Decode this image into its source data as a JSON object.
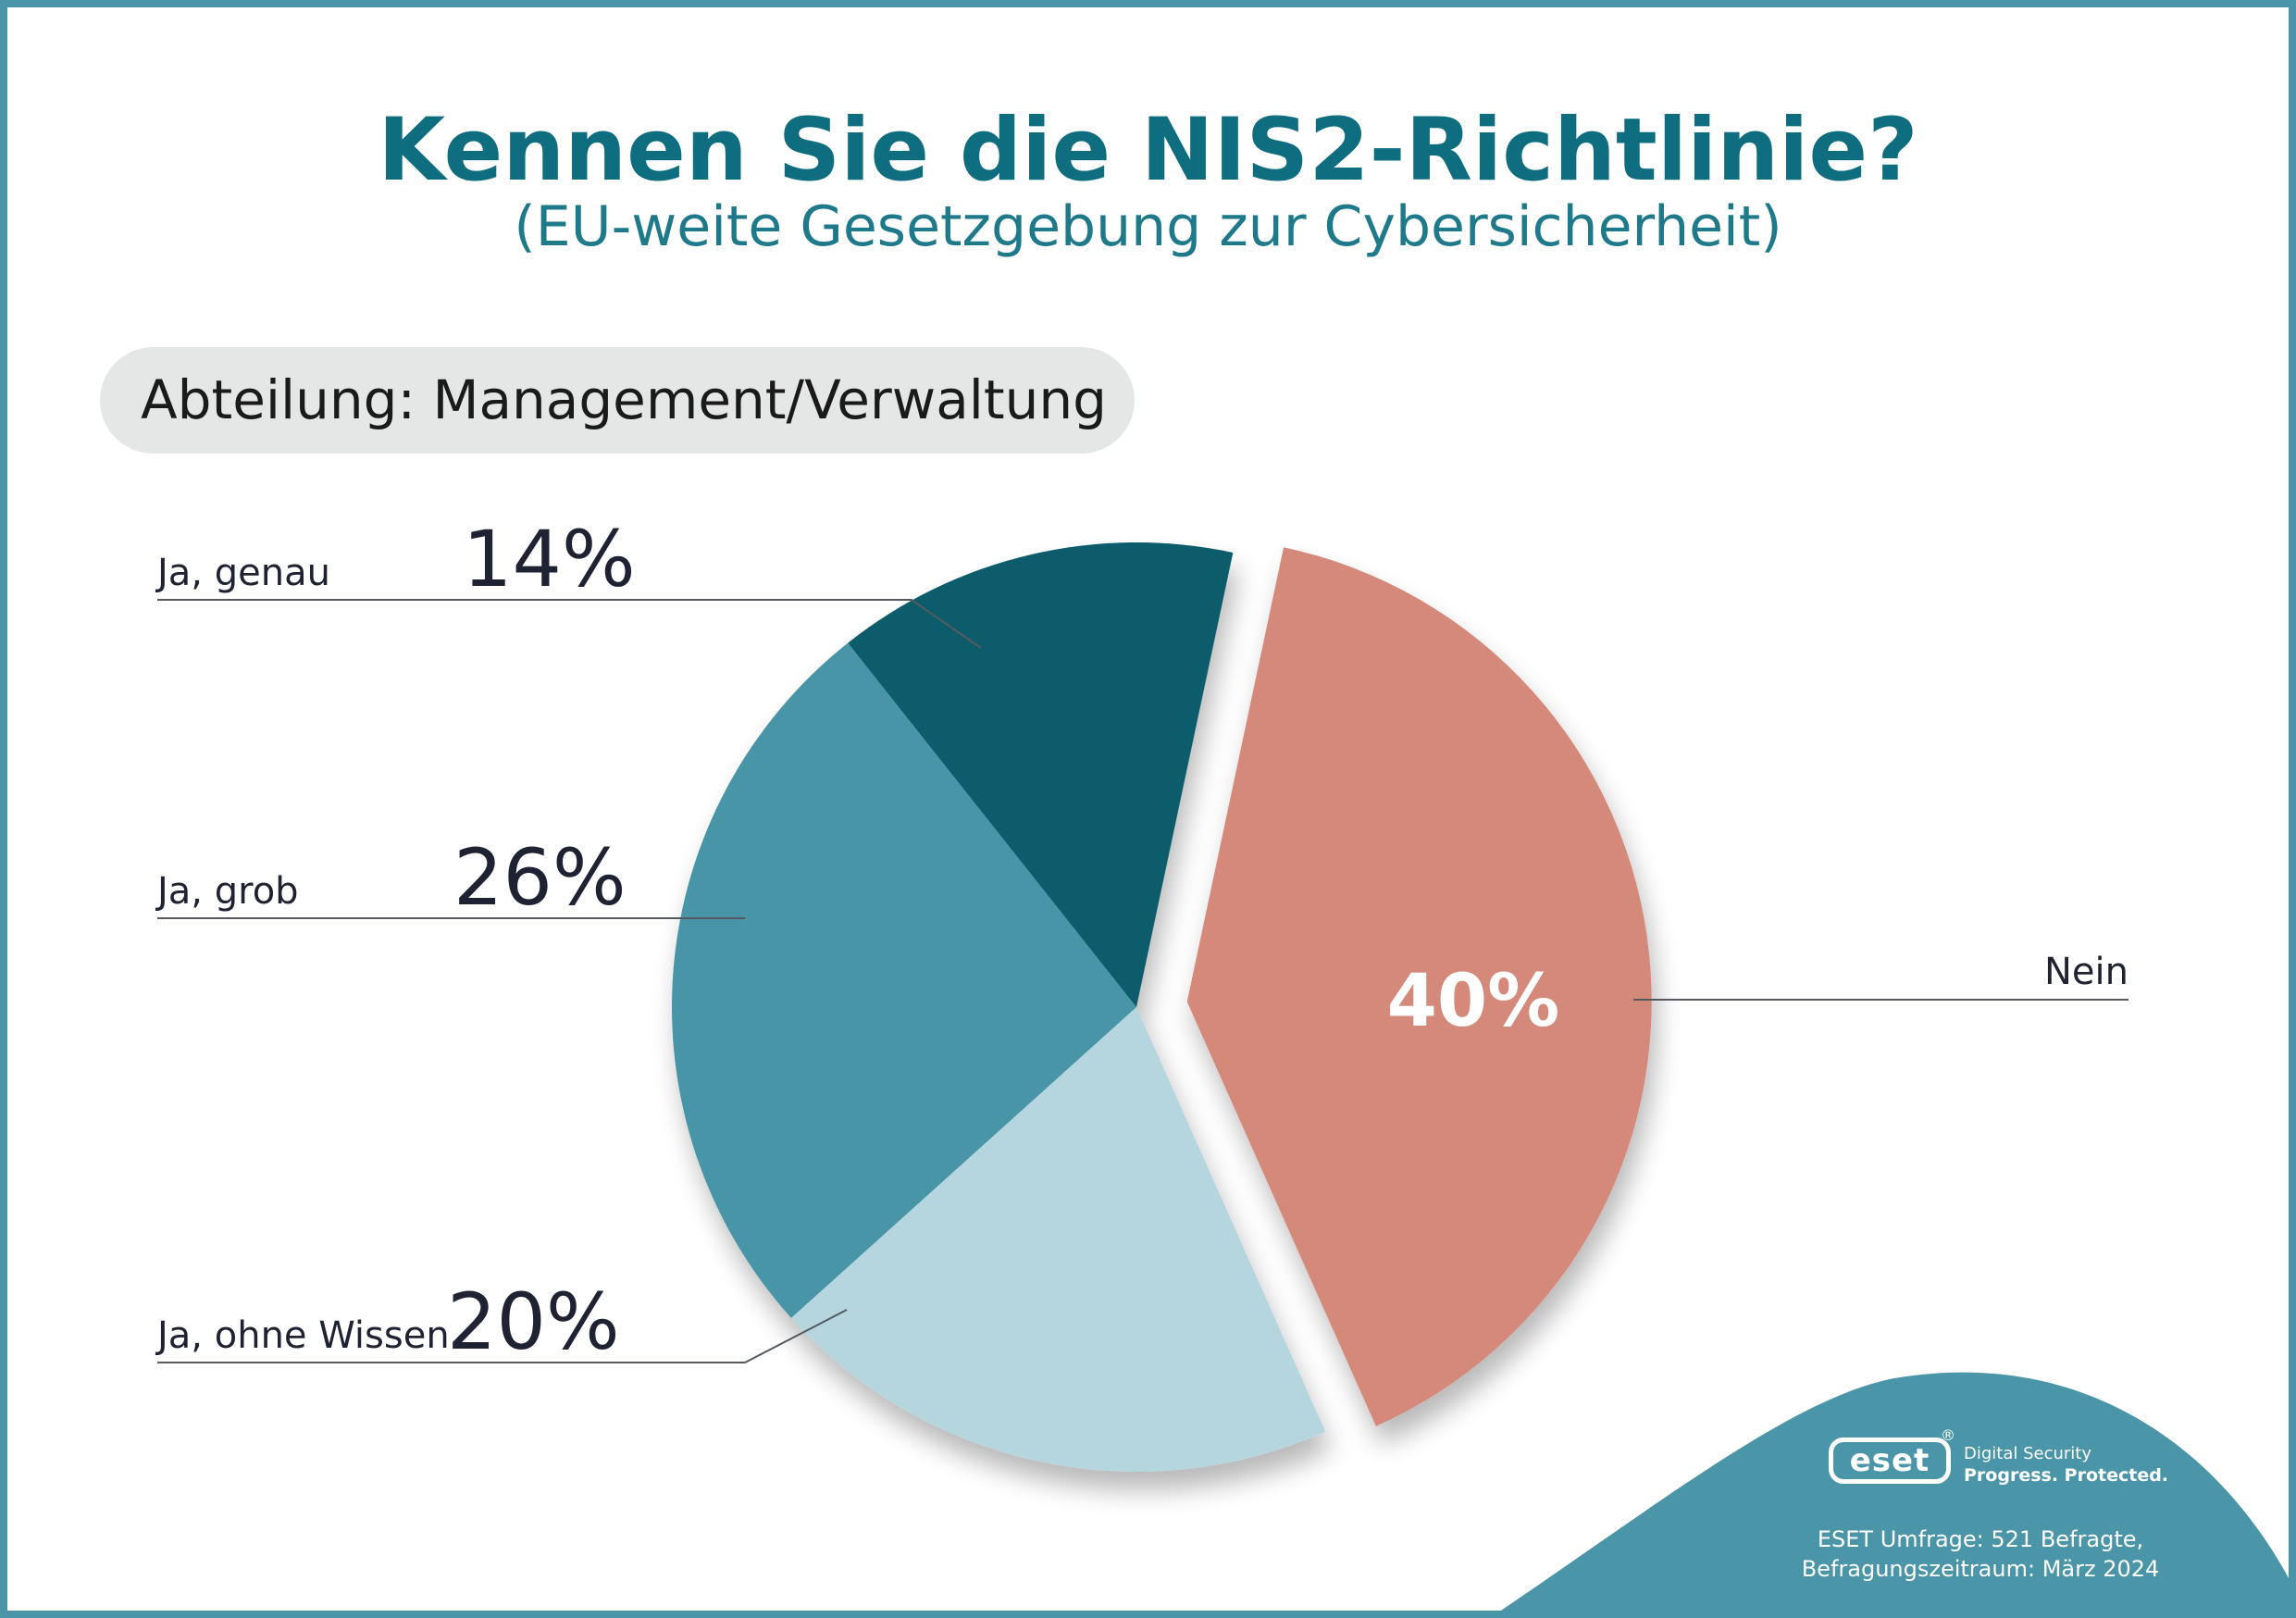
{
  "title": "Kennen Sie die NIS2-Richtlinie?",
  "subtitle": "(EU-weite Gesetzgebung zur Cybersicherheit)",
  "department": "Abteilung: Management/Verwaltung",
  "chart_data": {
    "type": "pie",
    "title": "Kennen Sie die NIS2-Richtlinie?",
    "subtitle": "(EU-weite Gesetzgebung zur Cybersicherheit)",
    "slices": [
      {
        "label": "Ja, genau",
        "value": 14,
        "value_label": "14%",
        "color": "#0b5b6c"
      },
      {
        "label": "Ja, grob",
        "value": 26,
        "value_label": "26%",
        "color": "#4a95a8"
      },
      {
        "label": "Ja, ohne Wissen",
        "value": 20,
        "value_label": "20%",
        "color": "#b5d6df"
      },
      {
        "label": "Nein",
        "value": 40,
        "value_label": "40%",
        "color": "#d4897a",
        "exploded": true
      }
    ]
  },
  "brand": {
    "logo_text": "eset",
    "registered": "®",
    "tagline_1": "Digital Security",
    "tagline_2": "Progress. Protected.",
    "accent_color": "#4a95a8"
  },
  "source": {
    "line1": "ESET Umfrage: 521 Befragte,",
    "line2": "Befragungszeitraum: März 2024"
  }
}
